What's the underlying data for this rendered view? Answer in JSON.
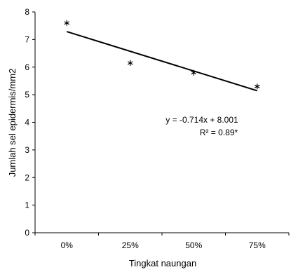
{
  "chart_data": {
    "type": "scatter",
    "title": "",
    "xlabel": "Tingkat naungan",
    "ylabel": "Jumlah sel epidermis/mm2",
    "categories": [
      "0%",
      "25%",
      "50%",
      "75%"
    ],
    "x_positions": [
      1,
      2,
      3,
      4
    ],
    "ylim": [
      0,
      8
    ],
    "y_ticks": [
      0,
      1,
      2,
      3,
      4,
      5,
      6,
      7,
      8
    ],
    "grid": false,
    "legend": "none",
    "series": [
      {
        "marker": "asterisk",
        "values": [
          7.6,
          6.15,
          5.8,
          5.3
        ]
      }
    ],
    "trendline": {
      "slope": -0.714,
      "intercept": 8.001,
      "x_range": [
        1,
        4
      ]
    },
    "annotations": {
      "equation": "y = -0.714x + 8.001",
      "r_squared": "R² = 0.89*"
    },
    "colors": {
      "marker": "#000000",
      "line": "#000000",
      "axis": "#000000"
    }
  }
}
